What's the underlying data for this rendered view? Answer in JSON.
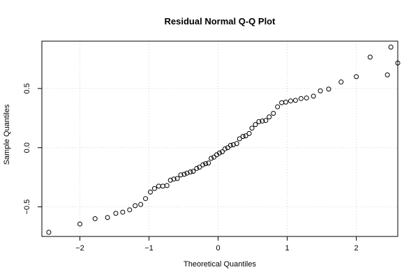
{
  "chart_data": {
    "type": "scatter",
    "title": "Residual Normal Q-Q Plot",
    "xlabel": "Theoretical Quantiles",
    "ylabel": "Sample Quantiles",
    "xlim": [
      -2.55,
      2.6
    ],
    "ylim": [
      -0.75,
      0.9
    ],
    "xticks": [
      -2,
      -1,
      0,
      1,
      2
    ],
    "xtick_labels": [
      "−2",
      "−1",
      "0",
      "1",
      "2"
    ],
    "yticks": [
      -0.5,
      0.0,
      0.5
    ],
    "ytick_labels": [
      "−0.5",
      "0.0",
      "0.5"
    ],
    "grid": true,
    "points": [
      {
        "x": -2.45,
        "y": -0.715
      },
      {
        "x": -2.0,
        "y": -0.645
      },
      {
        "x": -1.78,
        "y": -0.6
      },
      {
        "x": -1.6,
        "y": -0.59
      },
      {
        "x": -1.48,
        "y": -0.555
      },
      {
        "x": -1.38,
        "y": -0.545
      },
      {
        "x": -1.28,
        "y": -0.525
      },
      {
        "x": -1.2,
        "y": -0.49
      },
      {
        "x": -1.12,
        "y": -0.48
      },
      {
        "x": -1.05,
        "y": -0.43
      },
      {
        "x": -0.98,
        "y": -0.375
      },
      {
        "x": -0.92,
        "y": -0.345
      },
      {
        "x": -0.86,
        "y": -0.325
      },
      {
        "x": -0.8,
        "y": -0.325
      },
      {
        "x": -0.74,
        "y": -0.32
      },
      {
        "x": -0.69,
        "y": -0.275
      },
      {
        "x": -0.64,
        "y": -0.265
      },
      {
        "x": -0.59,
        "y": -0.26
      },
      {
        "x": -0.54,
        "y": -0.23
      },
      {
        "x": -0.49,
        "y": -0.225
      },
      {
        "x": -0.45,
        "y": -0.215
      },
      {
        "x": -0.4,
        "y": -0.205
      },
      {
        "x": -0.36,
        "y": -0.2
      },
      {
        "x": -0.31,
        "y": -0.175
      },
      {
        "x": -0.27,
        "y": -0.165
      },
      {
        "x": -0.22,
        "y": -0.145
      },
      {
        "x": -0.18,
        "y": -0.135
      },
      {
        "x": -0.14,
        "y": -0.13
      },
      {
        "x": -0.1,
        "y": -0.09
      },
      {
        "x": -0.06,
        "y": -0.08
      },
      {
        "x": -0.02,
        "y": -0.06
      },
      {
        "x": 0.02,
        "y": -0.045
      },
      {
        "x": 0.06,
        "y": -0.035
      },
      {
        "x": 0.1,
        "y": -0.01
      },
      {
        "x": 0.14,
        "y": 0.0
      },
      {
        "x": 0.18,
        "y": 0.02
      },
      {
        "x": 0.22,
        "y": 0.025
      },
      {
        "x": 0.27,
        "y": 0.035
      },
      {
        "x": 0.31,
        "y": 0.075
      },
      {
        "x": 0.36,
        "y": 0.095
      },
      {
        "x": 0.4,
        "y": 0.1
      },
      {
        "x": 0.45,
        "y": 0.12
      },
      {
        "x": 0.49,
        "y": 0.165
      },
      {
        "x": 0.54,
        "y": 0.195
      },
      {
        "x": 0.59,
        "y": 0.22
      },
      {
        "x": 0.64,
        "y": 0.225
      },
      {
        "x": 0.69,
        "y": 0.23
      },
      {
        "x": 0.74,
        "y": 0.26
      },
      {
        "x": 0.8,
        "y": 0.29
      },
      {
        "x": 0.86,
        "y": 0.345
      },
      {
        "x": 0.92,
        "y": 0.38
      },
      {
        "x": 0.98,
        "y": 0.385
      },
      {
        "x": 1.05,
        "y": 0.395
      },
      {
        "x": 1.12,
        "y": 0.4
      },
      {
        "x": 1.2,
        "y": 0.415
      },
      {
        "x": 1.28,
        "y": 0.42
      },
      {
        "x": 1.38,
        "y": 0.435
      },
      {
        "x": 1.48,
        "y": 0.48
      },
      {
        "x": 1.6,
        "y": 0.495
      },
      {
        "x": 1.78,
        "y": 0.555
      },
      {
        "x": 2.0,
        "y": 0.6
      },
      {
        "x": 2.45,
        "y": 0.615
      },
      {
        "x": 2.6,
        "y": 0.715
      },
      {
        "x": 2.2,
        "y": 0.765
      },
      {
        "x": 2.5,
        "y": 0.85
      }
    ]
  }
}
